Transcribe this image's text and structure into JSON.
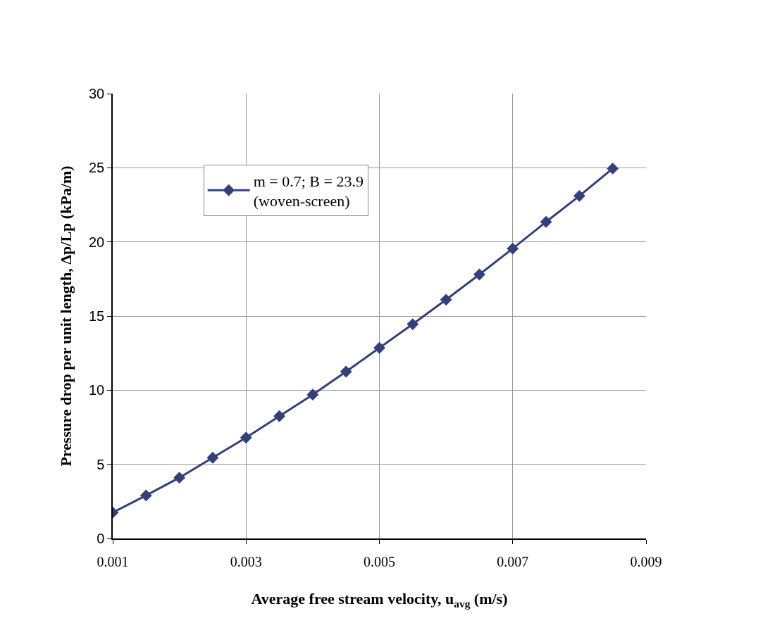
{
  "chart_data": {
    "type": "line",
    "xlabel": "Average free stream velocity, u$_{avg}$ (m/s)",
    "ylabel": "Pressure drop per unit length, Δp/Lp (kPa/m)",
    "x": [
      0.001,
      0.0015,
      0.002,
      0.0025,
      0.003,
      0.0035,
      0.004,
      0.0045,
      0.005,
      0.0055,
      0.006,
      0.0065,
      0.007,
      0.0075,
      0.008,
      0.0085
    ],
    "series": [
      {
        "name": "m = 0.7; B = 23.9\n(woven-screen)",
        "color": "#34407a",
        "values": [
          1.75,
          2.9,
          4.1,
          5.45,
          6.8,
          8.25,
          9.7,
          11.25,
          12.85,
          14.45,
          16.1,
          17.8,
          19.55,
          21.35,
          23.1,
          24.95
        ]
      }
    ],
    "xlim": [
      0.001,
      0.009
    ],
    "xticks": [
      0.001,
      0.003,
      0.005,
      0.007,
      0.009
    ],
    "ylim": [
      0,
      30
    ],
    "yticks": [
      0,
      5,
      10,
      15,
      20,
      25,
      30
    ],
    "grid": true,
    "legend": "top left",
    "marker": "diamond",
    "line_style": "solid"
  }
}
